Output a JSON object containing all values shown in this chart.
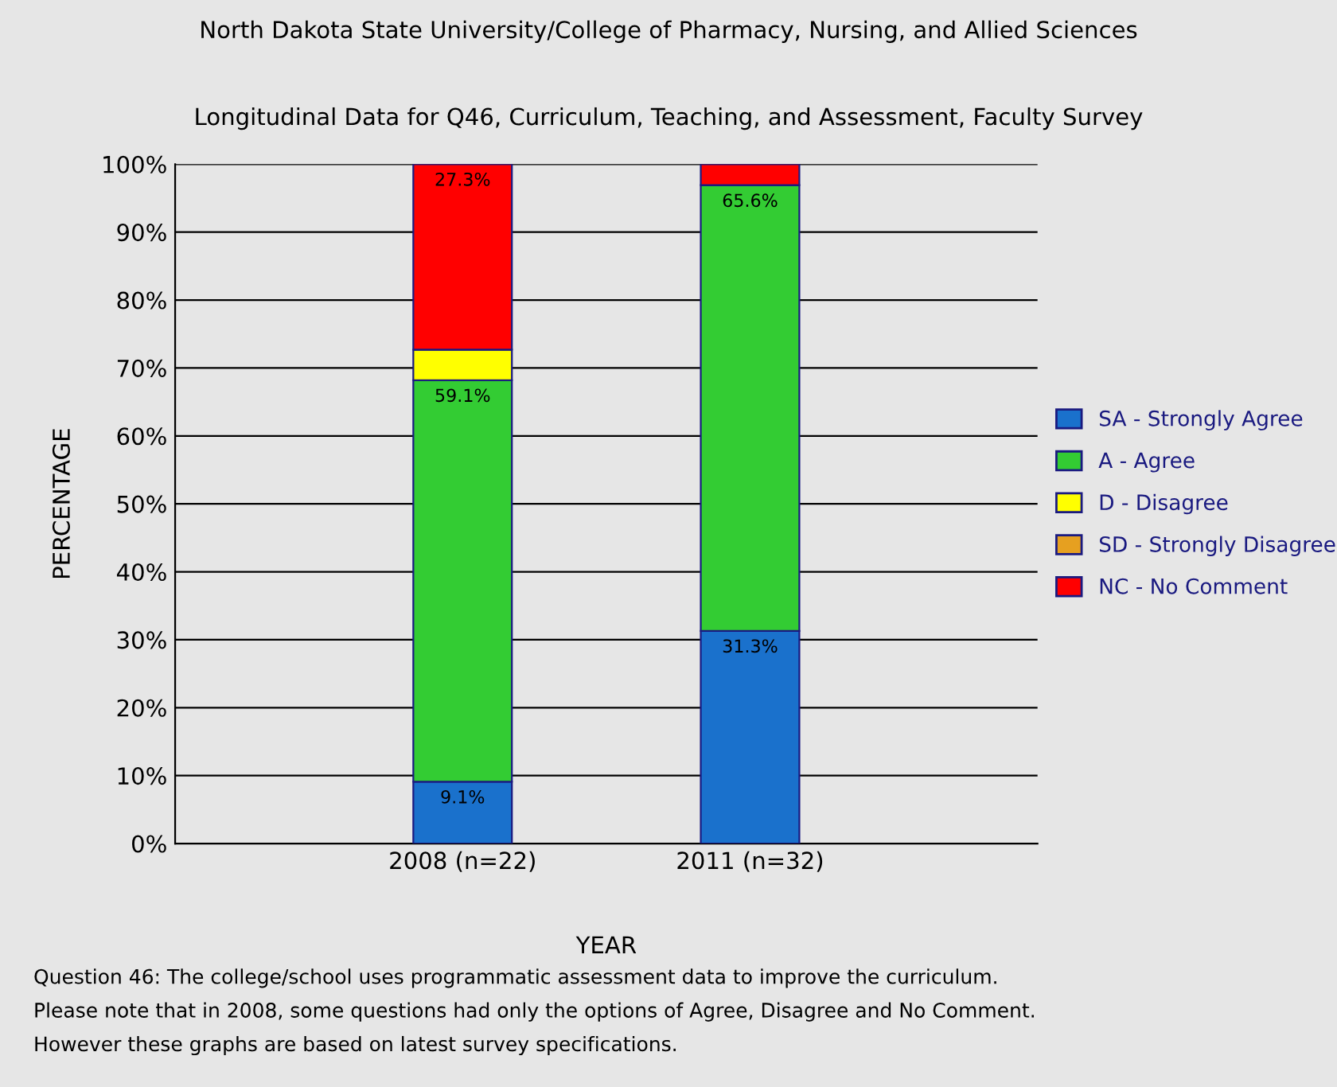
{
  "chart_data": {
    "type": "bar",
    "stacked": true,
    "title": "North Dakota State University/College of Pharmacy, Nursing, and Allied Sciences",
    "subtitle": "Longitudinal Data for Q46, Curriculum, Teaching, and Assessment, Faculty Survey",
    "xlabel": "YEAR",
    "ylabel": "PERCENTAGE",
    "categories": [
      "2008 (n=22)",
      "2011 (n=32)"
    ],
    "series": [
      {
        "name": "SA - Strongly Agree",
        "color": "#1a71cc",
        "values": [
          9.1,
          31.3
        ],
        "value_labels": [
          "9.1%",
          "31.3%"
        ]
      },
      {
        "name": "A - Agree",
        "color": "#33cc33",
        "values": [
          59.1,
          65.6
        ],
        "value_labels": [
          "59.1%",
          "65.6%"
        ]
      },
      {
        "name": "D - Disagree",
        "color": "#ffff00",
        "values": [
          4.5,
          0
        ],
        "value_labels": [
          null,
          null
        ]
      },
      {
        "name": "SD - Strongly Disagree",
        "color": "#e6a020",
        "values": [
          0,
          0
        ],
        "value_labels": [
          null,
          null
        ]
      },
      {
        "name": "NC - No Comment",
        "color": "#ff0000",
        "values": [
          27.3,
          3.1
        ],
        "value_labels": [
          "27.3%",
          null
        ]
      }
    ],
    "ylim": [
      0,
      100
    ],
    "yticks": [
      {
        "value": 0,
        "label": "0%"
      },
      {
        "value": 10,
        "label": "10%"
      },
      {
        "value": 20,
        "label": "20%"
      },
      {
        "value": 30,
        "label": "30%"
      },
      {
        "value": 40,
        "label": "40%"
      },
      {
        "value": 50,
        "label": "50%"
      },
      {
        "value": 60,
        "label": "60%"
      },
      {
        "value": 70,
        "label": "70%"
      },
      {
        "value": 80,
        "label": "80%"
      },
      {
        "value": 90,
        "label": "90%"
      },
      {
        "value": 100,
        "label": "100%"
      }
    ],
    "grid": "y",
    "legend": "right",
    "annotations": [
      "Question 46: The college/school uses programmatic assessment data to improve the curriculum.",
      "Please note that in 2008, some questions had only the options of Agree, Disagree and No Comment.",
      "However these graphs are based on latest survey specifications."
    ]
  }
}
